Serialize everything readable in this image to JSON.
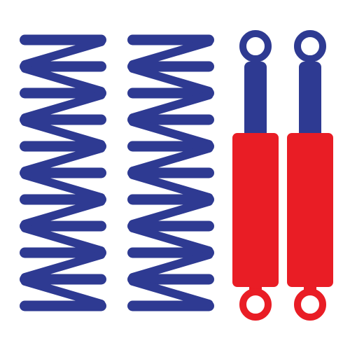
{
  "illustration": {
    "subject": "suspension-set-icon",
    "background_color": "#ffffff",
    "colors": {
      "spring_blue": "#2e3a92",
      "shock_rod_blue": "#2e3a92",
      "shock_body_red": "#e91d25",
      "eye_top_blue": "#2e3a92",
      "eye_bottom_red": "#e91d25"
    },
    "coil_springs": {
      "count": 2,
      "coils_each": 10,
      "icons": [
        "coil-spring-icon",
        "coil-spring-icon"
      ]
    },
    "shock_absorbers": {
      "count": 2,
      "icons": [
        "shock-absorber-icon",
        "shock-absorber-icon"
      ]
    }
  }
}
